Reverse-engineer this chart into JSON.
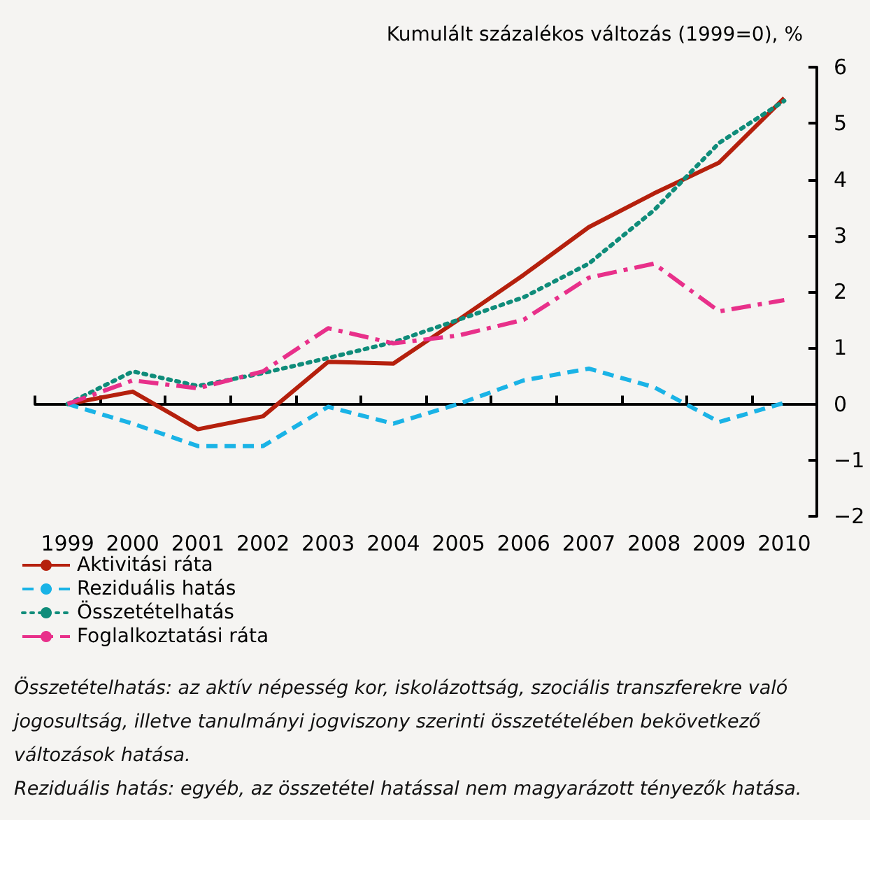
{
  "chart_data": {
    "type": "line",
    "ylabel": "Kumulált százalékos változás (1999=0), %",
    "categories": [
      "1999",
      "2000",
      "2001",
      "2002",
      "2003",
      "2004",
      "2005",
      "2006",
      "2007",
      "2008",
      "2009",
      "2010"
    ],
    "series": [
      {
        "name": "Aktivitási ráta",
        "color": "#b5200d",
        "line_style": "solid",
        "values": [
          0,
          0.22,
          -0.45,
          -0.22,
          0.75,
          0.72,
          1.5,
          2.3,
          3.15,
          3.75,
          4.3,
          5.45
        ]
      },
      {
        "name": "Reziduális hatás",
        "color": "#1ab3e6",
        "line_style": "dashed",
        "values": [
          0,
          -0.35,
          -0.75,
          -0.75,
          -0.05,
          -0.35,
          0.0,
          0.42,
          0.63,
          0.3,
          -0.32,
          0.02
        ]
      },
      {
        "name": "Összetételhatás",
        "color": "#0f8c7a",
        "line_style": "dotted",
        "values": [
          0,
          0.58,
          0.32,
          0.55,
          0.82,
          1.1,
          1.5,
          1.9,
          2.5,
          3.45,
          4.65,
          5.4
        ]
      },
      {
        "name": "Foglalkoztatási ráta",
        "color": "#e8308a",
        "line_style": "dashdot",
        "values": [
          0,
          0.42,
          0.28,
          0.58,
          1.35,
          1.08,
          1.22,
          1.5,
          2.25,
          2.5,
          1.65,
          1.85
        ]
      }
    ],
    "ylim": [
      -2,
      6
    ],
    "yticks": [
      -2,
      -1,
      0,
      1,
      2,
      3,
      4,
      5,
      6
    ],
    "legend": "bottom left",
    "marker": "none",
    "annotations": [
      "Összetételhatás: az aktív népesség kor, iskolázottság, szociális transzferekre való jogosultság, illetve tanulmányi jogviszony szerinti összetételében bekövetkező változások hatása.",
      "Reziduális hatás: egyéb, az összetétel hatással nem magyarázott tényezők hatása."
    ]
  }
}
